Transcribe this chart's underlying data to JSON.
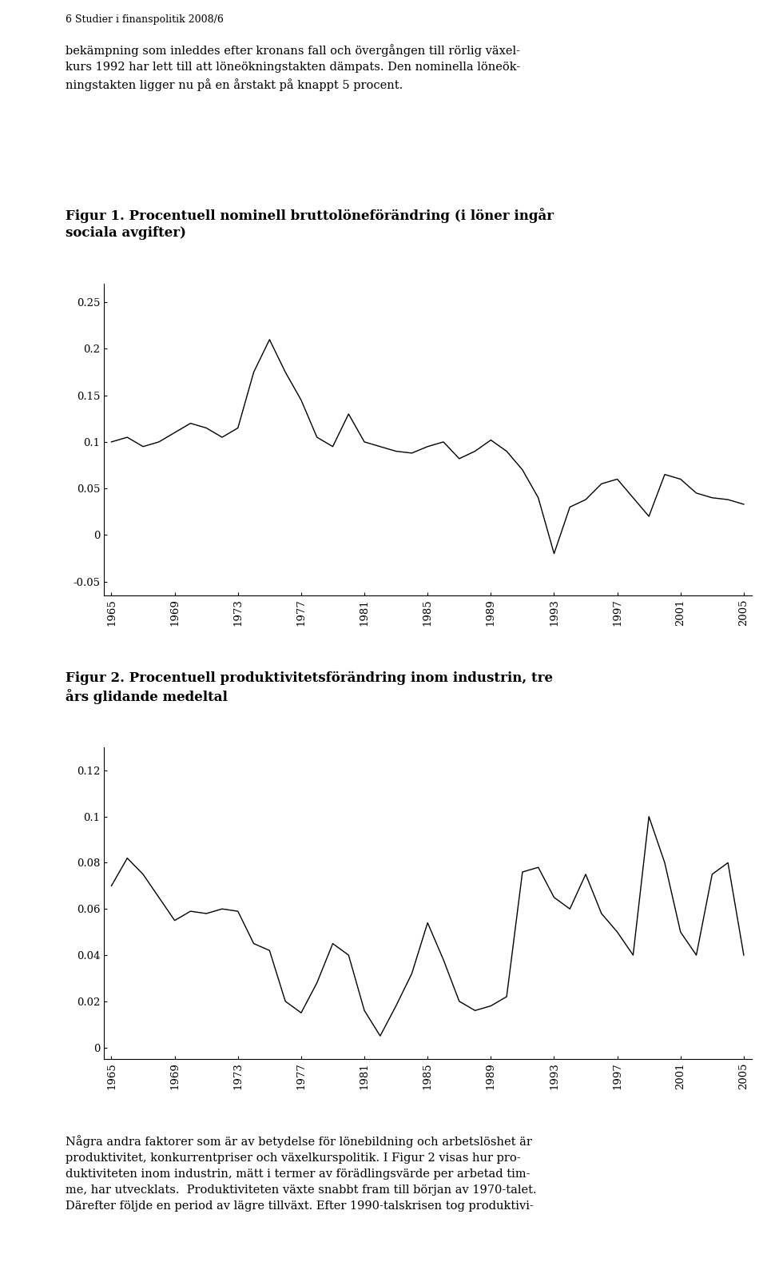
{
  "header": "6 Studier i finanspolitik 2008/6",
  "text1": "bekämpning som inleddes efter kronans fall och övergången till rörlig växel-\nkurs 1992 har lett till att löneökningstakten dämpats. Den nominella löneök-\nningstakten ligger nu på en årstakt på knappt 5 procent.",
  "fig1_title": "Figur 1. Procentuell nominell bruttolöneförändring (i löner ingår\nsociala avgifter)",
  "fig2_title": "Figur 2. Procentuell produktivitetsförändring inom industrin, tre\nårs glidande medeltal",
  "text2": "Några andra faktorer som är av betydelse för lönebildning och arbetslöshet är\nproduktivitet, konkurrentpriser och växelkurspolitik. I Figur 2 visas hur pro-\nduktiviteten inom industrin, mätt i termer av förädlingsvärde per arbetad tim-\nme, har utvecklats.  Produktiviteten växte snabbt fram till början av 1970-talet.\nDärefter följde en period av lägre tillväxt. Efter 1990-talskrisen tog produktivi-",
  "fig1_years": [
    1965,
    1966,
    1967,
    1968,
    1969,
    1970,
    1971,
    1972,
    1973,
    1974,
    1975,
    1976,
    1977,
    1978,
    1979,
    1980,
    1981,
    1982,
    1983,
    1984,
    1985,
    1986,
    1987,
    1988,
    1989,
    1990,
    1991,
    1992,
    1993,
    1994,
    1995,
    1996,
    1997,
    1998,
    1999,
    2000,
    2001,
    2002,
    2003,
    2004,
    2005
  ],
  "fig1_values": [
    0.1,
    0.105,
    0.095,
    0.1,
    0.11,
    0.12,
    0.115,
    0.105,
    0.115,
    0.175,
    0.21,
    0.175,
    0.145,
    0.105,
    0.095,
    0.13,
    0.1,
    0.095,
    0.09,
    0.088,
    0.095,
    0.1,
    0.082,
    0.09,
    0.102,
    0.09,
    0.07,
    0.04,
    -0.02,
    0.03,
    0.038,
    0.055,
    0.06,
    0.04,
    0.02,
    0.065,
    0.06,
    0.045,
    0.04,
    0.038,
    0.033
  ],
  "fig1_yticks": [
    -0.05,
    0,
    0.05,
    0.1,
    0.15,
    0.2,
    0.25
  ],
  "fig1_ylim": [
    -0.065,
    0.27
  ],
  "fig2_years": [
    1965,
    1966,
    1967,
    1968,
    1969,
    1970,
    1971,
    1972,
    1973,
    1974,
    1975,
    1976,
    1977,
    1978,
    1979,
    1980,
    1981,
    1982,
    1983,
    1984,
    1985,
    1986,
    1987,
    1988,
    1989,
    1990,
    1991,
    1992,
    1993,
    1994,
    1995,
    1996,
    1997,
    1998,
    1999,
    2000,
    2001,
    2002,
    2003,
    2004,
    2005
  ],
  "fig2_values": [
    0.07,
    0.082,
    0.075,
    0.065,
    0.055,
    0.059,
    0.058,
    0.06,
    0.059,
    0.045,
    0.042,
    0.02,
    0.015,
    0.028,
    0.045,
    0.04,
    0.016,
    0.005,
    0.018,
    0.032,
    0.054,
    0.038,
    0.02,
    0.016,
    0.018,
    0.022,
    0.076,
    0.078,
    0.065,
    0.06,
    0.075,
    0.058,
    0.05,
    0.04,
    0.1,
    0.08,
    0.05,
    0.04,
    0.075,
    0.08,
    0.04
  ],
  "fig2_yticks": [
    0,
    0.02,
    0.04,
    0.06,
    0.08,
    0.1,
    0.12
  ],
  "fig2_ylim": [
    -0.005,
    0.13
  ],
  "xtick_years": [
    1965,
    1969,
    1973,
    1977,
    1981,
    1985,
    1989,
    1993,
    1997,
    2001,
    2005
  ],
  "line_color": "#000000",
  "line_width": 1.0,
  "background_color": "#ffffff",
  "text_color": "#000000",
  "font_size_header": 9,
  "font_size_body": 10.5,
  "font_size_title": 12,
  "font_size_tick": 9.5
}
